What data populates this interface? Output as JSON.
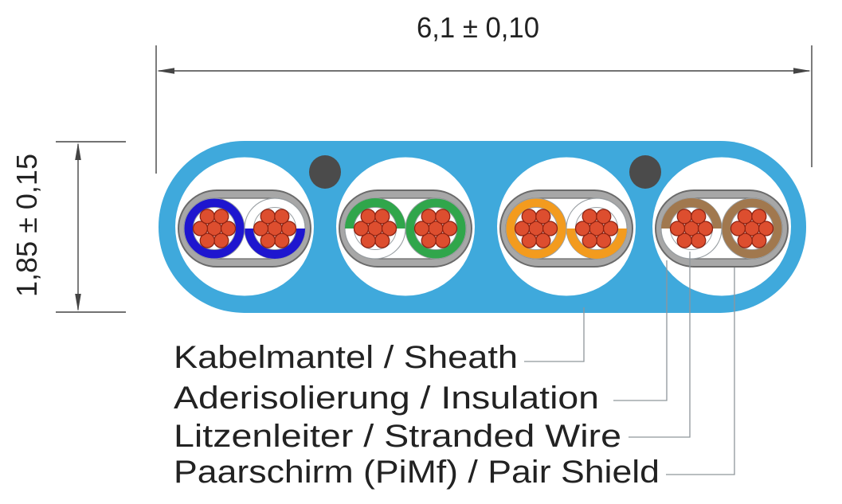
{
  "diagram": {
    "type": "flat-cable-cross-section",
    "dimensions": {
      "width_label": "6,1 ± 0,10",
      "height_label": "1,85 ± 0,15"
    },
    "labels": [
      {
        "id": "sheath",
        "text": "Kabelmantel / Sheath"
      },
      {
        "id": "insulation",
        "text": "Aderisolierung / Insulation"
      },
      {
        "id": "stranded-wire",
        "text": "Litzenleiter / Stranded Wire"
      },
      {
        "id": "pair-shield",
        "text": "Paarschirm (PiMf) / Pair Shield"
      }
    ],
    "pairs": [
      {
        "name": "blue-pair",
        "color": "#1e16cf",
        "solid_side": "left"
      },
      {
        "name": "green-pair",
        "color": "#30a64b",
        "solid_side": "right"
      },
      {
        "name": "orange-pair",
        "color": "#f39b1e",
        "solid_side": "left"
      },
      {
        "name": "brown-pair",
        "color": "#a1784e",
        "solid_side": "right"
      }
    ],
    "colors": {
      "jacket": "#3fa9dc",
      "pair_bed": "#ffffff",
      "shield": "#a7a7a7",
      "shield_edge": "#6a6a6a",
      "shield_inner": "#ffffff",
      "strand": "#dd4e2f",
      "strand_edge": "#8e2312",
      "filler_dot": "#4b4b4b",
      "outline": "#9aa0a4",
      "leader_line": "#8f969b",
      "dimension_line": "#444444",
      "text": "#222222",
      "background": "#ffffff"
    }
  }
}
